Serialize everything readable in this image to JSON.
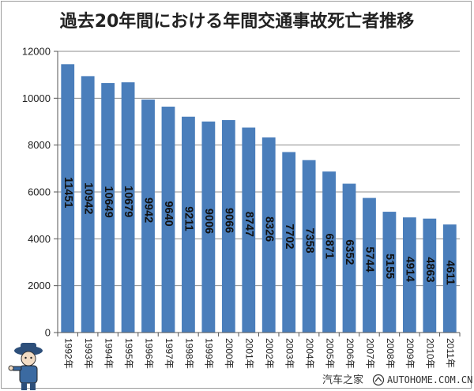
{
  "chart_data": {
    "type": "bar",
    "title": "過去20年間における年間交通事故死亡者推移",
    "categories": [
      "1992年",
      "1993年",
      "1994年",
      "1995年",
      "1996年",
      "1997年",
      "1998年",
      "1999年",
      "2000年",
      "2001年",
      "2002年",
      "2003年",
      "2004年",
      "2005年",
      "2006年",
      "2007年",
      "2008年",
      "2009年",
      "2010年",
      "2011年"
    ],
    "values": [
      11451,
      10942,
      10649,
      10679,
      9942,
      9640,
      9211,
      9006,
      9066,
      8747,
      8326,
      7702,
      7358,
      6871,
      6352,
      5744,
      5155,
      4914,
      4863,
      4611
    ],
    "data_labels": [
      "11451",
      "10942",
      "10649",
      "10679",
      "9942",
      "9640",
      "9211",
      "9006",
      "9066",
      "8747",
      "8326",
      "7702",
      "7358",
      "6871",
      "6352",
      "5744",
      "5155",
      "4914",
      "4863",
      "4611"
    ],
    "yticks": [
      "0",
      "2000",
      "4000",
      "6000",
      "8000",
      "10000",
      "12000"
    ],
    "ylim": [
      0,
      12000
    ],
    "xlabel": "",
    "ylabel": "",
    "grid": true,
    "bar_color": "#4a7ebb",
    "grid_color": "#8c8c8c"
  },
  "watermark": {
    "text": "汽车之家",
    "brand": "AUTOHOME.COM.CN"
  }
}
